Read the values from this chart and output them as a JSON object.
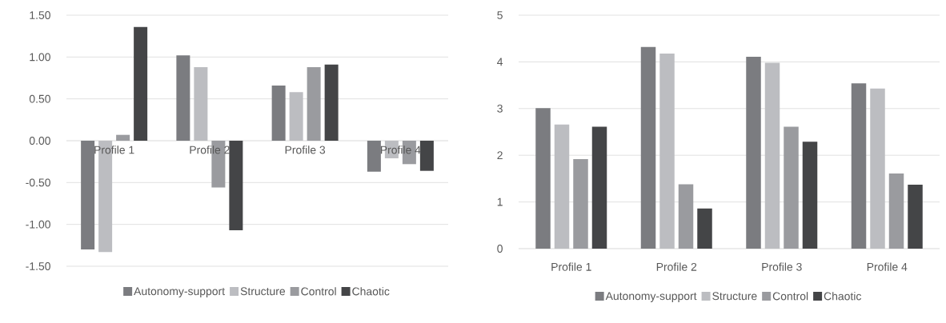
{
  "chart_data": [
    {
      "type": "bar",
      "categories": [
        "Profile 1",
        "Profile 2",
        "Profile 3",
        "Profile 4"
      ],
      "series": [
        {
          "name": "Autonomy-support",
          "color": "#7b7c80",
          "values": [
            -1.3,
            1.02,
            0.66,
            -0.37
          ]
        },
        {
          "name": "Structure",
          "color": "#bcbdc1",
          "values": [
            -1.33,
            0.88,
            0.58,
            -0.21
          ]
        },
        {
          "name": "Control",
          "color": "#9a9b9f",
          "values": [
            0.07,
            -0.56,
            0.88,
            -0.28
          ]
        },
        {
          "name": "Chaotic",
          "color": "#444547",
          "values": [
            1.36,
            -1.07,
            0.91,
            -0.36
          ]
        }
      ],
      "ylim": [
        -1.5,
        1.5
      ],
      "yticks": [
        {
          "value": -1.5,
          "label": "-1.50"
        },
        {
          "value": -1.0,
          "label": "-1.00"
        },
        {
          "value": -0.5,
          "label": "-0.50"
        },
        {
          "value": 0,
          "label": "0.00"
        },
        {
          "value": 0.5,
          "label": "0.50"
        },
        {
          "value": 1.0,
          "label": "1.00"
        },
        {
          "value": 1.5,
          "label": "1.50"
        }
      ],
      "grid": "y",
      "legend": "bottom"
    },
    {
      "type": "bar",
      "categories": [
        "Profile 1",
        "Profile 2",
        "Profile 3",
        "Profile 4"
      ],
      "series": [
        {
          "name": "Autonomy-support",
          "color": "#7b7c80",
          "values": [
            3.01,
            4.32,
            4.11,
            3.54
          ]
        },
        {
          "name": "Structure",
          "color": "#bcbdc1",
          "values": [
            2.66,
            4.18,
            3.98,
            3.43
          ]
        },
        {
          "name": "Control",
          "color": "#9a9b9f",
          "values": [
            1.92,
            1.38,
            2.61,
            1.61
          ]
        },
        {
          "name": "Chaotic",
          "color": "#444547",
          "values": [
            2.61,
            0.86,
            2.29,
            1.37
          ]
        }
      ],
      "ylim": [
        0,
        5
      ],
      "yticks": [
        0,
        1,
        2,
        3,
        4,
        5
      ],
      "grid": "y",
      "legend": "bottom"
    }
  ]
}
